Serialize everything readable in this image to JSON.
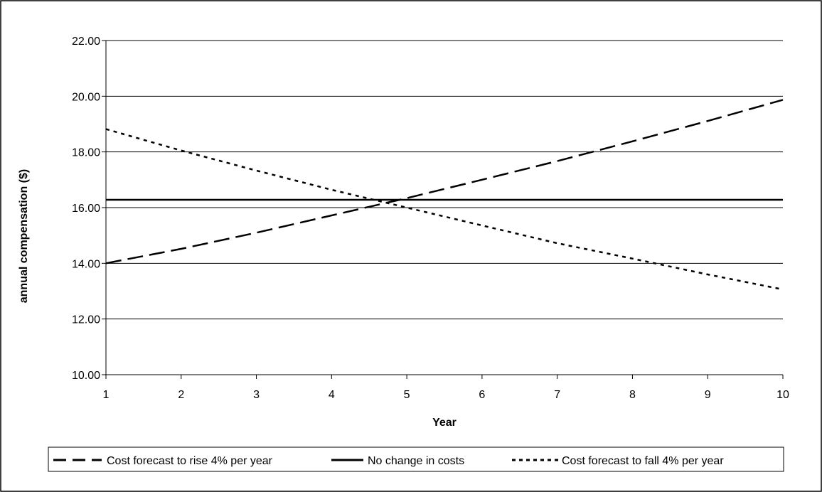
{
  "chart_data": {
    "type": "line",
    "title": "",
    "xlabel": "Year",
    "ylabel": "annual compensation ($)",
    "x": [
      1,
      2,
      3,
      4,
      5,
      6,
      7,
      8,
      9,
      10
    ],
    "x_tick_labels": [
      "1",
      "2",
      "3",
      "4",
      "5",
      "6",
      "7",
      "8",
      "9",
      "10"
    ],
    "y_tick_labels": [
      "10.00",
      "12.00",
      "14.00",
      "16.00",
      "18.00",
      "20.00",
      "22.00"
    ],
    "xlim": [
      1,
      10
    ],
    "ylim": [
      10,
      22
    ],
    "y_ticks": [
      10,
      12,
      14,
      16,
      18,
      20,
      22
    ],
    "grid": "horizontal",
    "legend_position": "bottom",
    "series": [
      {
        "name": "Cost forecast to rise 4% per year",
        "style": "long-dash",
        "values": [
          14.0,
          14.52,
          15.1,
          15.72,
          16.34,
          17.0,
          17.67,
          18.38,
          19.11,
          19.87
        ]
      },
      {
        "name": "No change in costs",
        "style": "solid",
        "values": [
          16.28,
          16.28,
          16.28,
          16.28,
          16.28,
          16.28,
          16.28,
          16.28,
          16.28,
          16.28
        ]
      },
      {
        "name": "Cost forecast to fall 4% per year",
        "style": "dotted",
        "values": [
          18.82,
          18.05,
          17.33,
          16.64,
          16.0,
          15.36,
          14.72,
          14.17,
          13.6,
          13.06
        ]
      }
    ]
  }
}
